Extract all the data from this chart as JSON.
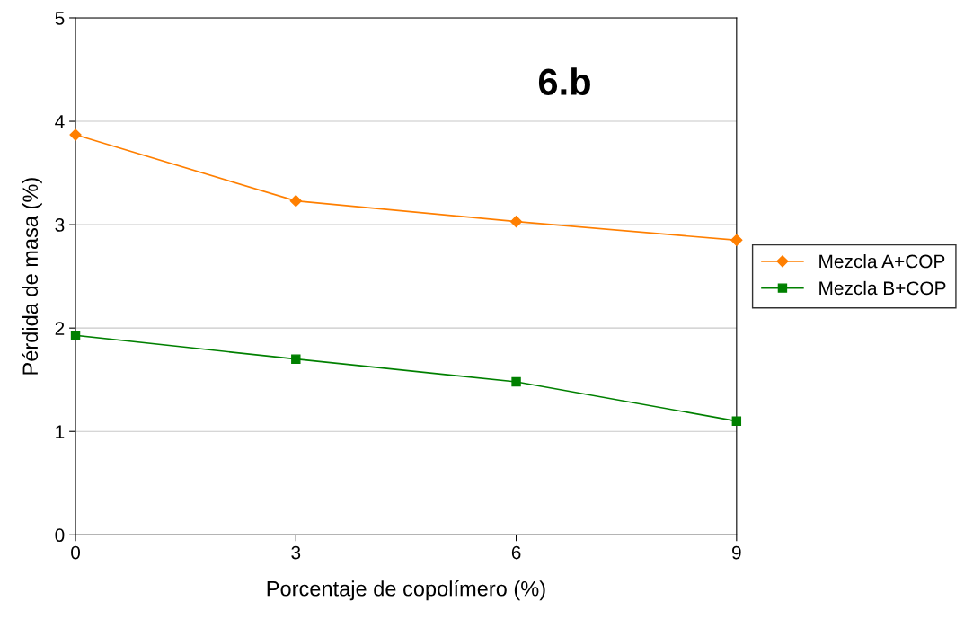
{
  "chart_data": {
    "type": "line",
    "xlabel": "Porcentaje de copolímero (%)",
    "ylabel": "Pérdida de masa (%)",
    "annotations": [
      "6.b"
    ],
    "x": [
      0,
      3,
      6,
      9
    ],
    "series": [
      {
        "name": "Mezcla A+COP",
        "color": "#ff7f00",
        "marker": "diamond",
        "values": [
          3.87,
          3.23,
          3.03,
          2.85
        ]
      },
      {
        "name": "Mezcla B+COP",
        "color": "#008000",
        "marker": "square",
        "values": [
          1.93,
          1.7,
          1.48,
          1.1
        ]
      }
    ],
    "xlim": [
      0,
      9
    ],
    "xticks": [
      0,
      3,
      6,
      9
    ],
    "ylim": [
      0,
      5
    ],
    "yticks": [
      0,
      1,
      2,
      3,
      4,
      5
    ],
    "grid": "y",
    "legend": "right",
    "line_style": "solid"
  }
}
